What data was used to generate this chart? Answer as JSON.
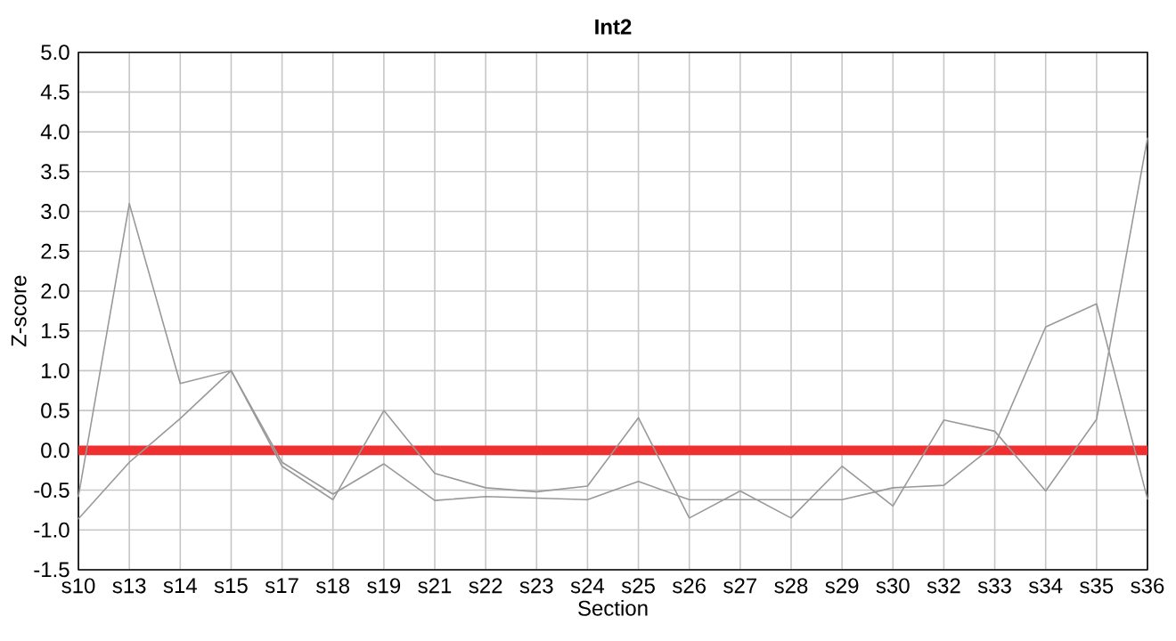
{
  "chart_data": {
    "type": "line",
    "title": "Int2",
    "xlabel": "Section",
    "ylabel": "Z-score",
    "categories": [
      "s10",
      "s13",
      "s14",
      "s15",
      "s17",
      "s18",
      "s19",
      "s21",
      "s22",
      "s23",
      "s24",
      "s25",
      "s26",
      "s27",
      "s28",
      "s29",
      "s30",
      "s32",
      "s33",
      "s34",
      "s35",
      "s36"
    ],
    "series": [
      {
        "color": "#999999",
        "values": [
          -0.58,
          3.1,
          0.84,
          1.0,
          -0.2,
          -0.62,
          0.5,
          -0.29,
          -0.47,
          -0.52,
          -0.45,
          0.41,
          -0.85,
          -0.51,
          -0.85,
          -0.2,
          -0.7,
          0.38,
          0.24,
          -0.51,
          0.39,
          3.92
        ]
      },
      {
        "color": "#999999",
        "values": [
          -0.86,
          -0.15,
          0.4,
          1.0,
          -0.15,
          -0.55,
          -0.17,
          -0.63,
          -0.58,
          -0.6,
          -0.62,
          -0.39,
          -0.62,
          -0.62,
          -0.62,
          -0.62,
          -0.47,
          -0.44,
          0.07,
          1.55,
          1.84,
          -0.61
        ]
      }
    ],
    "ylim": [
      -1.5,
      5.0
    ],
    "yticks": [
      {
        "value": -1.5,
        "label": "-1.5"
      },
      {
        "value": -1.0,
        "label": "-1.0"
      },
      {
        "value": -0.5,
        "label": "-0.5"
      },
      {
        "value": 0,
        "label": "0.0"
      },
      {
        "value": 0.5,
        "label": "0.5"
      },
      {
        "value": 1.0,
        "label": "1.0"
      },
      {
        "value": 1.5,
        "label": "1.5"
      },
      {
        "value": 2.0,
        "label": "2.0"
      },
      {
        "value": 2.5,
        "label": "2.5"
      },
      {
        "value": 3.0,
        "label": "3.0"
      },
      {
        "value": 3.5,
        "label": "3.5"
      },
      {
        "value": 4.0,
        "label": "4.0"
      },
      {
        "value": 4.5,
        "label": "4.5"
      },
      {
        "value": 5.0,
        "label": "5.0"
      }
    ],
    "ref_lines": [
      {
        "axis": "y",
        "value": 0,
        "color": "#f03030"
      }
    ],
    "grid": true,
    "marker": "none",
    "line_style": "solid"
  }
}
